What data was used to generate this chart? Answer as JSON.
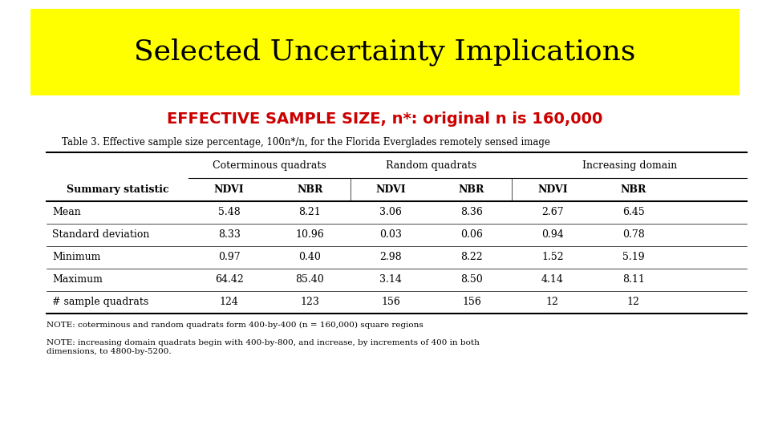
{
  "title": "Selected Uncertainty Implications",
  "title_bg_color": "#FFFF00",
  "subtitle": "EFFECTIVE SAMPLE SIZE, n*: original n is 160,000",
  "subtitle_color": "#CC0000",
  "table_caption": "Table 3. Effective sample size percentage, 100n*/n, for the Florida Everglades remotely sensed image",
  "col_groups": [
    "Coterminous quadrats",
    "Random quadrats",
    "Increasing domain"
  ],
  "col_subheaders": [
    "NDVI",
    "NBR",
    "NDVI",
    "NBR",
    "NDVI",
    "NBR"
  ],
  "row_labels": [
    "Mean",
    "Standard deviation",
    "Minimum",
    "Maximum",
    "# sample quadrats"
  ],
  "data": [
    [
      "5.48",
      "8.21",
      "3.06",
      "8.36",
      "2.67",
      "6.45"
    ],
    [
      "8.33",
      "10.96",
      "0.03",
      "0.06",
      "0.94",
      "0.78"
    ],
    [
      "0.97",
      "0.40",
      "2.98",
      "8.22",
      "1.52",
      "5.19"
    ],
    [
      "64.42",
      "85.40",
      "3.14",
      "8.50",
      "4.14",
      "8.11"
    ],
    [
      "124",
      "123",
      "156",
      "156",
      "12",
      "12"
    ]
  ],
  "notes": [
    "NOTE: coterminous and random quadrats form 400-by-400 (n = 160,000) square regions",
    "NOTE: increasing domain quadrats begin with 400-by-800, and increase, by increments of 400 in both\ndimensions, to 4800-by-5200."
  ],
  "bg_color": "#FFFFFF"
}
